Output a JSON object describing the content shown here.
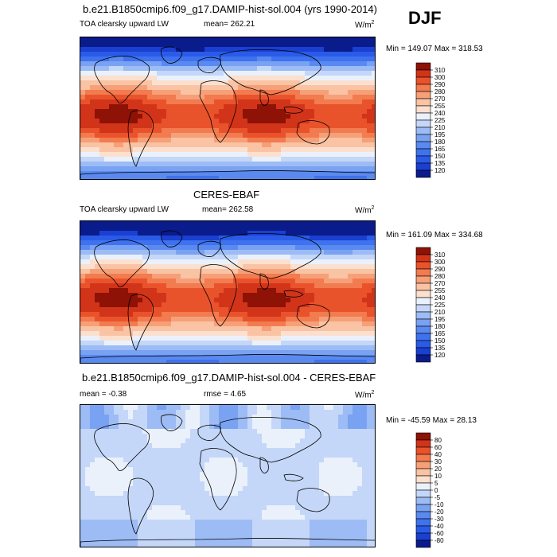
{
  "title": "b.e21.B1850cmip6.f09_g17.DAMIP-hist-sol.004 (yrs 1990-2014)",
  "season": "DJF",
  "panels": [
    {
      "id": "model",
      "heading": "",
      "left_label": "TOA clearsky upward LW",
      "center_label": "mean= 262.21",
      "units": "W/m",
      "units_sup": "2",
      "minmax": "Min = 149.07 Max = 318.53"
    },
    {
      "id": "obs",
      "heading": "CERES-EBAF",
      "left_label": "TOA clearsky upward LW",
      "center_label": "mean= 262.58",
      "units": "W/m",
      "units_sup": "2",
      "minmax": "Min = 161.09 Max = 334.68"
    },
    {
      "id": "diff",
      "heading": "b.e21.B1850cmip6.f09_g17.DAMIP-hist-sol.004 - CERES-EBAF",
      "left_label": "mean = -0.38",
      "center_label": "rmse = 4.65",
      "units": "W/m",
      "units_sup": "2",
      "minmax": "Min = -45.59 Max = 28.13"
    }
  ],
  "chart_data": [
    {
      "type": "heatmap",
      "title": "TOA clearsky upward LW",
      "subtitle": "b.e21.B1850cmip6.f09_g17.DAMIP-hist-sol.004 (yrs 1990-2014)",
      "season": "DJF",
      "units": "W/m2",
      "mean": 262.21,
      "min": 149.07,
      "max": 318.53,
      "levels": [
        120,
        135,
        150,
        165,
        180,
        195,
        210,
        225,
        240,
        255,
        270,
        280,
        290,
        300,
        310
      ],
      "colors": [
        "#0a1b8c",
        "#1a3fd1",
        "#2a5be8",
        "#3f72ef",
        "#5a8af0",
        "#7aa2f2",
        "#9dbcf5",
        "#c4d7f8",
        "#eaf1fb",
        "#fbe0cf",
        "#f9c3a4",
        "#f6a079",
        "#f27b4f",
        "#e9532c",
        "#d2341a",
        "#8e1206"
      ]
    },
    {
      "type": "heatmap",
      "title": "TOA clearsky upward LW",
      "subtitle": "CERES-EBAF",
      "units": "W/m2",
      "mean": 262.58,
      "min": 161.09,
      "max": 334.68,
      "levels": [
        120,
        135,
        150,
        165,
        180,
        195,
        210,
        225,
        240,
        255,
        270,
        280,
        290,
        300,
        310
      ],
      "colors": [
        "#0a1b8c",
        "#1a3fd1",
        "#2a5be8",
        "#3f72ef",
        "#5a8af0",
        "#7aa2f2",
        "#9dbcf5",
        "#c4d7f8",
        "#eaf1fb",
        "#fbe0cf",
        "#f9c3a4",
        "#f6a079",
        "#f27b4f",
        "#e9532c",
        "#d2341a",
        "#8e1206"
      ]
    },
    {
      "type": "heatmap",
      "title": "b.e21.B1850cmip6.f09_g17.DAMIP-hist-sol.004 - CERES-EBAF",
      "units": "W/m2",
      "mean": -0.38,
      "rmse": 4.65,
      "min": -45.59,
      "max": 28.13,
      "levels": [
        -80,
        -60,
        -40,
        -30,
        -20,
        -10,
        -5,
        0,
        5,
        10,
        20,
        30,
        40,
        60,
        80
      ],
      "colors": [
        "#0a1b8c",
        "#1a3fd1",
        "#2a5be8",
        "#3f72ef",
        "#5a8af0",
        "#7aa2f2",
        "#9dbcf5",
        "#c4d7f8",
        "#eaf1fb",
        "#fbe0cf",
        "#f9c3a4",
        "#f6a079",
        "#f27b4f",
        "#e9532c",
        "#d2341a",
        "#8e1206"
      ]
    }
  ]
}
